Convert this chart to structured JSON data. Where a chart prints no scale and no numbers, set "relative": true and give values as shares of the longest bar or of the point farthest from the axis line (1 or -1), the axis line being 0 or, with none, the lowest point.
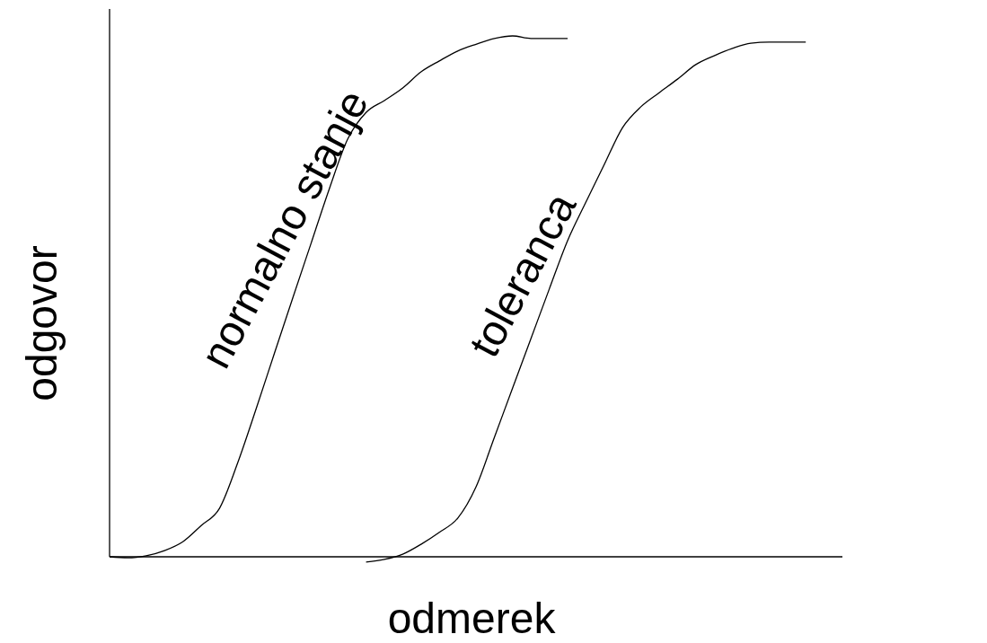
{
  "chart_data": {
    "type": "line",
    "relative": true,
    "xlabel": "odmerek",
    "ylabel": "odgovor",
    "grid": false,
    "legend": false,
    "marker": "none",
    "line_style": "solid",
    "categories": [
      null,
      null,
      null,
      null,
      null,
      null,
      null,
      null,
      null,
      null,
      null,
      null,
      null,
      null,
      null,
      null,
      null,
      null,
      null,
      null,
      null,
      null,
      null,
      null,
      null,
      null,
      null,
      null,
      null,
      null,
      null,
      null,
      null,
      null,
      null,
      null,
      null,
      null,
      null,
      null,
      null
    ],
    "series": [
      {
        "name": "normalno stanje",
        "color": "#000000",
        "values": [
          0,
          -0.002,
          0.002,
          0.012,
          0.029,
          0.06,
          0.093,
          0.181,
          0.284,
          0.391,
          0.497,
          0.602,
          0.707,
          0.802,
          0.853,
          0.876,
          0.9,
          0.931,
          0.952,
          0.971,
          0.984,
          0.995,
          1,
          0.995,
          0.995,
          0.995,
          null,
          null,
          null,
          null,
          null,
          null,
          null,
          null,
          null,
          null,
          null,
          null,
          null,
          null,
          null
        ]
      },
      {
        "name": "toleranca",
        "color": "#000000",
        "values": [
          null,
          null,
          null,
          null,
          null,
          null,
          null,
          null,
          null,
          null,
          null,
          null,
          null,
          null,
          -0.01,
          -0.005,
          0.005,
          0.024,
          0.047,
          0.074,
          0.134,
          0.229,
          0.324,
          0.419,
          0.514,
          0.607,
          0.681,
          0.753,
          0.824,
          0.864,
          0.891,
          0.917,
          0.945,
          0.962,
          0.976,
          0.986,
          0.988,
          0.988,
          0.988,
          null,
          null
        ]
      }
    ]
  }
}
